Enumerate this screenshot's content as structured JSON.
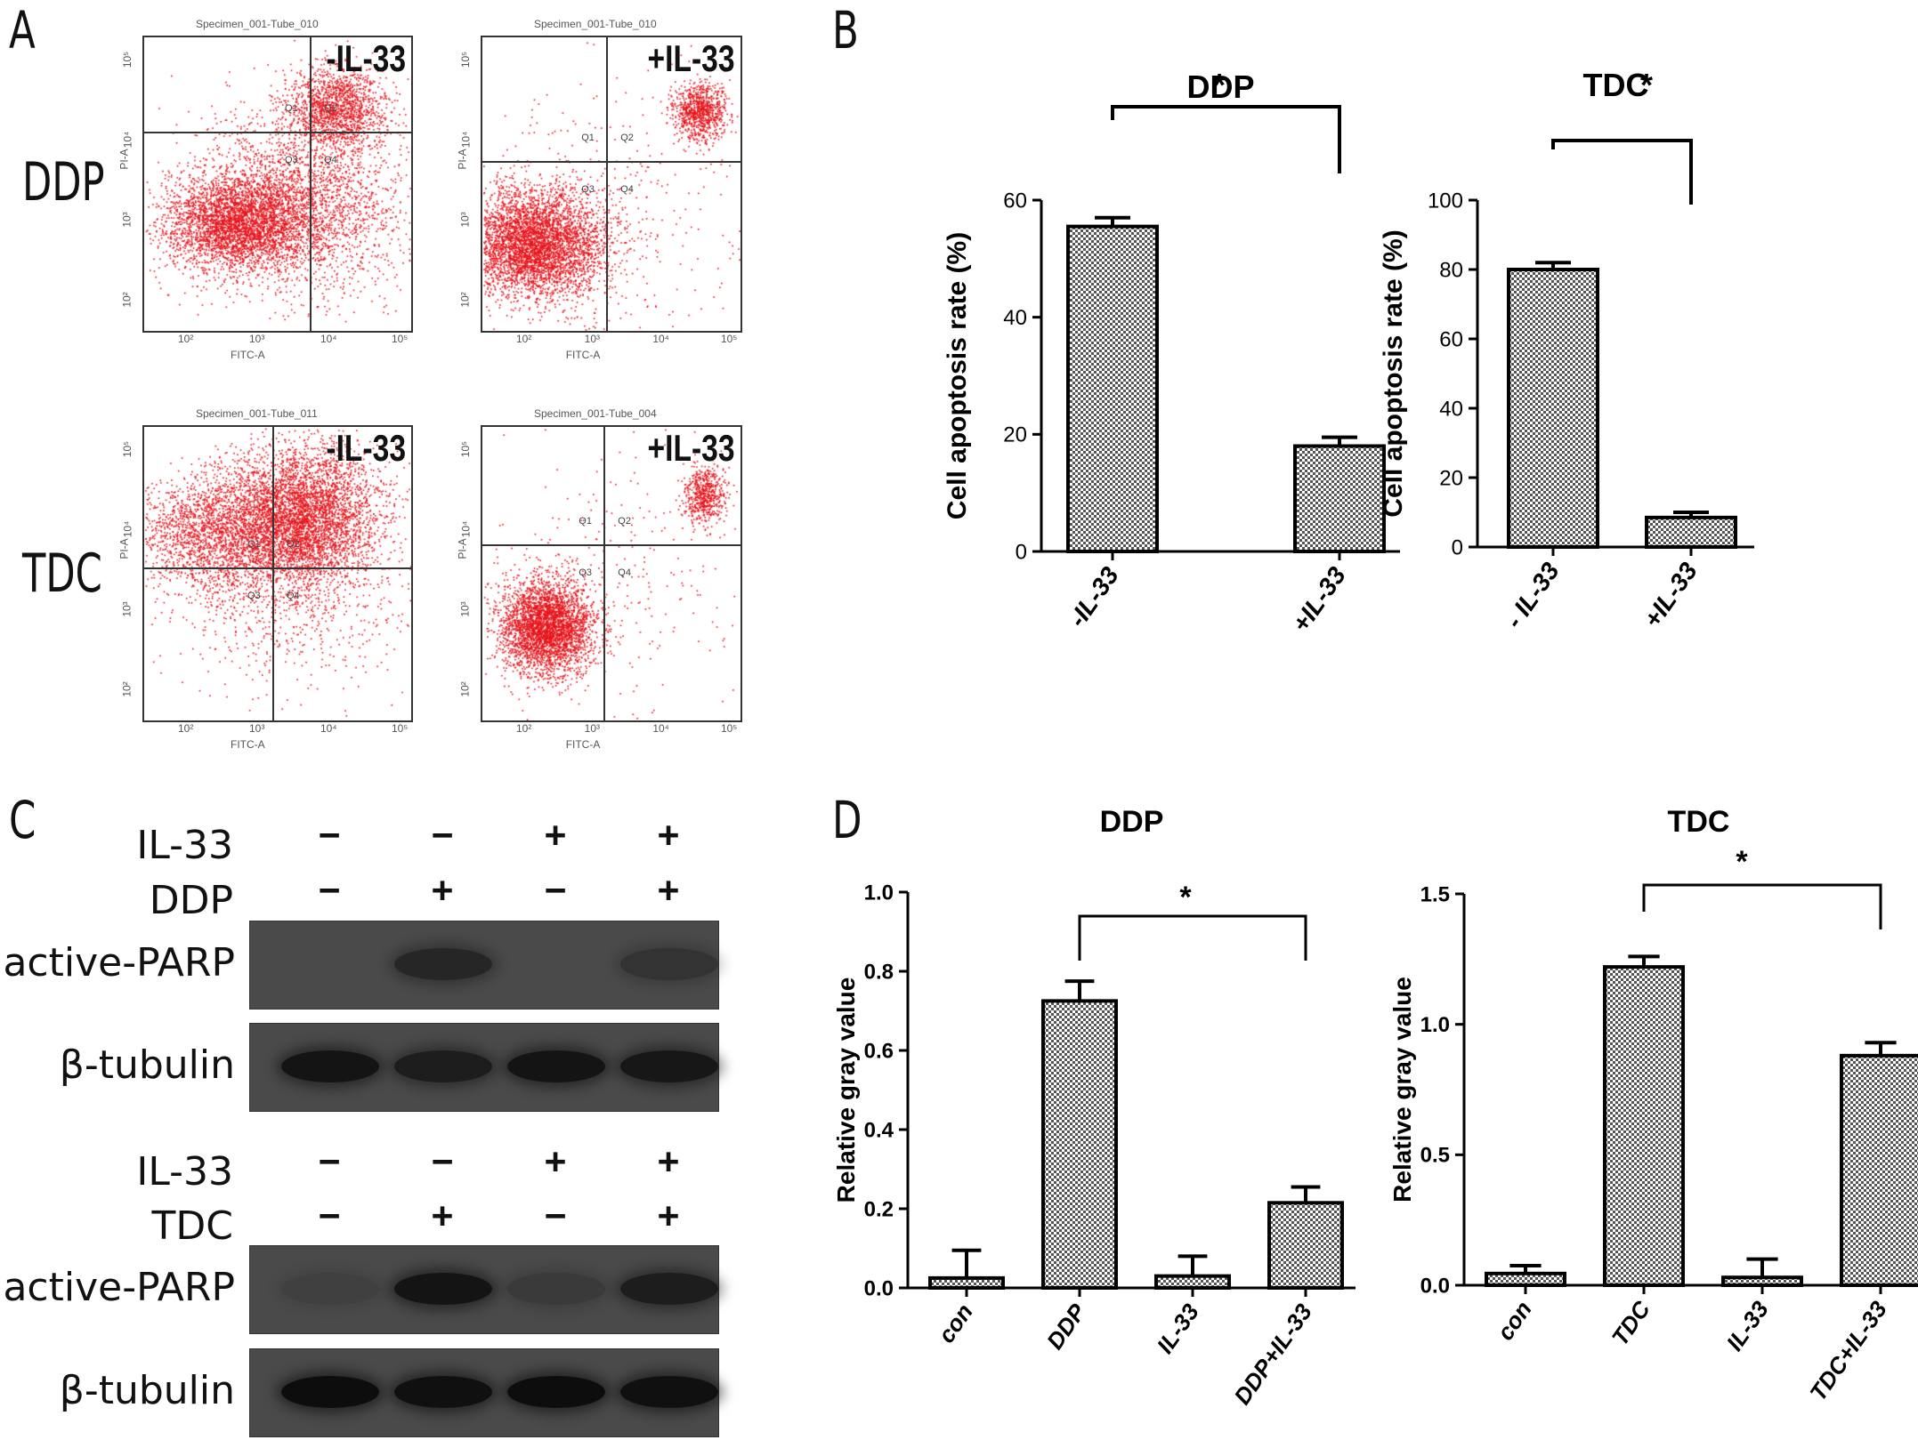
{
  "panels": {
    "a": "A",
    "b": "B",
    "c": "C",
    "d": "D"
  },
  "flow": {
    "rows": [
      {
        "label": "DDP",
        "plots": [
          {
            "specimen": "Specimen_001-Tube_010",
            "tag": "-IL-33",
            "q": [
              "Q1",
              "Q2",
              "Q3",
              "Q4"
            ]
          },
          {
            "specimen": "Specimen_001-Tube_010",
            "tag": "+IL-33",
            "q": [
              "Q1",
              "Q2",
              "Q3",
              "Q4"
            ]
          }
        ]
      },
      {
        "label": "TDC",
        "plots": [
          {
            "specimen": "Specimen_001-Tube_011",
            "tag": "-IL-33",
            "q": [
              "Q1",
              "Q2",
              "Q3",
              "Q4"
            ]
          },
          {
            "specimen": "Specimen_001-Tube_004",
            "tag": "+IL-33",
            "q": [
              "Q1",
              "Q2",
              "Q3",
              "Q4"
            ]
          }
        ]
      }
    ],
    "xaxis": "FITC-A",
    "yaxis": "PI-A",
    "dot_color": "#e8141b"
  },
  "wb": {
    "groups": [
      {
        "row_labels": [
          "IL-33",
          "DDP"
        ],
        "signs": [
          [
            "−",
            "−",
            "+",
            "+"
          ],
          [
            "−",
            "+",
            "−",
            "+"
          ]
        ],
        "blots": [
          {
            "label": "active-PARP",
            "intensity": [
              0,
              0.55,
              0,
              0.35
            ]
          },
          {
            "label": "β-tubulin",
            "intensity": [
              0.85,
              0.7,
              0.85,
              0.8
            ]
          }
        ]
      },
      {
        "row_labels": [
          "IL-33",
          "TDC"
        ],
        "signs": [
          [
            "−",
            "−",
            "+",
            "+"
          ],
          [
            "−",
            "+",
            "−",
            "+"
          ]
        ],
        "blots": [
          {
            "label": "active-PARP",
            "intensity": [
              0.15,
              0.85,
              0.25,
              0.7
            ]
          },
          {
            "label": "β-tubulin",
            "intensity": [
              0.95,
              0.9,
              0.95,
              0.9
            ]
          }
        ]
      }
    ]
  },
  "chart_data": [
    {
      "type": "bar",
      "title": "DDP",
      "sig": "*",
      "categories": [
        "-IL-33",
        "+IL-33"
      ],
      "values": [
        55.5,
        18
      ],
      "errors": [
        1.5,
        1.5
      ],
      "ylabel": "Cell apoptosis rate (%)",
      "ylim": [
        0,
        60
      ],
      "yticks": [
        "0",
        "20",
        "40",
        "60"
      ]
    },
    {
      "type": "bar",
      "title": "TDC",
      "sig": "*",
      "categories": [
        "- IL-33",
        "+IL-33"
      ],
      "values": [
        80,
        8.5
      ],
      "errors": [
        2,
        1.5
      ],
      "ylabel": "Cell apoptosis rate (%)",
      "ylim": [
        0,
        100
      ],
      "yticks": [
        "0",
        "20",
        "40",
        "60",
        "80",
        "100"
      ]
    },
    {
      "type": "bar",
      "title": "DDP",
      "sig": "*",
      "categories": [
        "con",
        "DDP",
        "IL-33",
        "DDP+IL-33"
      ],
      "values": [
        0.025,
        0.725,
        0.03,
        0.215
      ],
      "errors": [
        0.07,
        0.05,
        0.05,
        0.04
      ],
      "ylabel": "Relative gray value",
      "ylim": [
        0,
        1.0
      ],
      "yticks": [
        "0.0",
        "0.2",
        "0.4",
        "0.6",
        "0.8",
        "1.0"
      ]
    },
    {
      "type": "bar",
      "title": "TDC",
      "sig": "*",
      "categories": [
        "con",
        "TDC",
        "IL-33",
        "TDC+IL-33"
      ],
      "values": [
        0.045,
        1.22,
        0.03,
        0.88
      ],
      "errors": [
        0.03,
        0.04,
        0.07,
        0.05
      ],
      "ylabel": "Relative gray value",
      "ylim": [
        0,
        1.5
      ],
      "yticks": [
        "0.0",
        "0.5",
        "1.0",
        "1.5"
      ]
    }
  ]
}
